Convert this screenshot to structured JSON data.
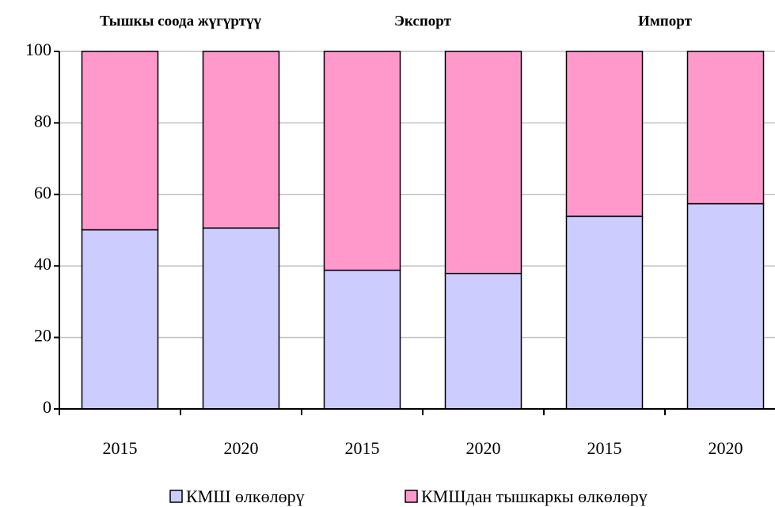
{
  "chart_data": {
    "type": "stacked-bar",
    "groups": [
      "Тышкы соода жүгүртүү",
      "Экспорт",
      "Импорт"
    ],
    "categories": [
      "2015",
      "2020",
      "2015",
      "2020",
      "2015",
      "2020"
    ],
    "series": [
      {
        "name": "КМШ өлкөлөрү",
        "color": "#ccccff",
        "values": [
          50.1,
          50.6,
          38.8,
          37.9,
          53.9,
          57.4
        ]
      },
      {
        "name": "КМШдан тышкаркы өлкөлөрү",
        "color": "#ff99cc",
        "values": [
          49.9,
          49.4,
          61.2,
          62.1,
          46.1,
          42.6
        ]
      }
    ],
    "ylim": [
      0,
      100
    ],
    "yticks": [
      0,
      20,
      40,
      60,
      80,
      100
    ],
    "grid": true,
    "legend": "bottom"
  }
}
